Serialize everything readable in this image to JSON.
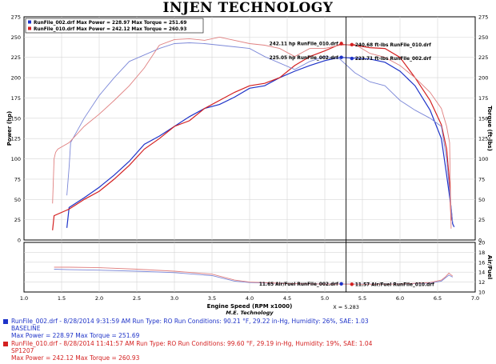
{
  "header": {
    "title": "INJEN TECHNOLOGY"
  },
  "legend_box": {
    "lines": [
      {
        "text": "RunFile_002.drf  Max Power = 228.97    Max Torque = 251.69",
        "color": "#1e33c8"
      },
      {
        "text": "RunFile_010.drf  Max Power = 242.12    Max Torque = 260.93",
        "color": "#d42020"
      }
    ]
  },
  "cursor": {
    "x": 5.283,
    "label": "X = 5.283"
  },
  "annotations": [
    {
      "text": "242.11 hp RunFile_010.drf",
      "x": 5.22,
      "y": 242.11,
      "axis": "power",
      "side": "left",
      "color": "#d42020"
    },
    {
      "text": "225.05 hp RunFile_002.drf",
      "x": 5.22,
      "y": 225.05,
      "axis": "power",
      "side": "left",
      "color": "#1e33c8"
    },
    {
      "text": "240.68 ft-lbs RunFile_010.drf",
      "x": 5.36,
      "y": 240.68,
      "axis": "power",
      "side": "right",
      "color": "#d42020"
    },
    {
      "text": "223.71 ft-lbs RunFile_002.drf",
      "x": 5.36,
      "y": 223.71,
      "axis": "power",
      "side": "right",
      "color": "#1e33c8"
    },
    {
      "text": "11.65 Air/Fuel RunFile_002.drf",
      "x": 5.22,
      "y": 11.65,
      "axis": "af",
      "side": "left",
      "color": "#1e33c8"
    },
    {
      "text": "11.57 Air/Fuel RunFile_010.drf",
      "x": 5.36,
      "y": 11.57,
      "axis": "af",
      "side": "right",
      "color": "#d42020"
    }
  ],
  "footer": {
    "run1": {
      "line1": "RunFile_002.drf - 8/28/2014 9:31:59 AM  Run Type: RO  Run Conditions: 90.21 °F, 29.22 in-Hg,  Humidity:  26%, SAE: 1.03",
      "line2": "BASELINE",
      "line3": "Max Power = 228.97  Max Torque = 251.69",
      "color": "#1e33c8"
    },
    "run2": {
      "line1": "RunFile_010.drf - 8/28/2014 11:41:57 AM  Run Type: RO  Run Conditions: 99.60 °F, 29.19 in-Hg,  Humidity:  19%, SAE: 1.04",
      "line2": "SP1207",
      "line3": "Max Power = 242.12  Max Torque = 260.93",
      "color": "#d42020"
    }
  },
  "chart_data": {
    "type": "line",
    "xlabel": "Engine Speed (RPM x1000)",
    "xlabel_sub": "M.E. Technology",
    "xlim": [
      1.0,
      7.0
    ],
    "xticks": [
      "1.0",
      "1.5",
      "2.0",
      "2.5",
      "3.0",
      "3.5",
      "4.0",
      "4.5",
      "5.0",
      "5.5",
      "6.0",
      "6.5",
      "7.0"
    ],
    "main": {
      "ylabel_left": "Power (hp)",
      "ylabel_right": "Torque (ft-lbs)",
      "ylim": [
        0,
        275
      ],
      "yticks": [
        "0",
        "25",
        "50",
        "75",
        "100",
        "125",
        "150",
        "175",
        "200",
        "225",
        "250",
        "275"
      ],
      "grid": true,
      "series": [
        {
          "name": "RunFile_002.drf Power",
          "color": "#1e33c8",
          "kind": "power",
          "x": [
            1.57,
            1.6,
            1.8,
            2.0,
            2.2,
            2.4,
            2.6,
            2.8,
            3.0,
            3.2,
            3.4,
            3.6,
            3.8,
            4.0,
            4.2,
            4.4,
            4.6,
            4.8,
            5.0,
            5.2,
            5.4,
            5.6,
            5.8,
            6.0,
            6.2,
            6.4,
            6.55,
            6.62,
            6.68,
            6.7,
            6.72
          ],
          "y": [
            15,
            40,
            52,
            65,
            80,
            97,
            118,
            128,
            140,
            152,
            162,
            167,
            176,
            187,
            190,
            200,
            208,
            215,
            221,
            225,
            224,
            223,
            219,
            208,
            190,
            160,
            125,
            80,
            40,
            20,
            16
          ]
        },
        {
          "name": "RunFile_010.drf Power",
          "color": "#d42020",
          "kind": "power",
          "x": [
            1.38,
            1.4,
            1.6,
            1.8,
            2.0,
            2.2,
            2.4,
            2.6,
            2.8,
            3.0,
            3.2,
            3.4,
            3.6,
            3.8,
            4.0,
            4.2,
            4.4,
            4.6,
            4.8,
            5.0,
            5.2,
            5.4,
            5.6,
            5.8,
            6.0,
            6.2,
            6.4,
            6.55,
            6.62,
            6.66,
            6.68
          ],
          "y": [
            12,
            30,
            38,
            50,
            60,
            75,
            92,
            112,
            125,
            140,
            147,
            162,
            172,
            182,
            190,
            193,
            200,
            215,
            226,
            233,
            241,
            240,
            237,
            236,
            225,
            200,
            172,
            142,
            112,
            70,
            24
          ]
        },
        {
          "name": "RunFile_002.drf Torque",
          "color": "#7c88d8",
          "kind": "torque",
          "x": [
            1.57,
            1.6,
            1.62,
            1.65,
            1.8,
            2.0,
            2.2,
            2.4,
            2.6,
            2.8,
            3.0,
            3.2,
            3.4,
            3.6,
            3.8,
            4.0,
            4.2,
            4.4,
            4.6,
            4.8,
            5.0,
            5.2,
            5.4,
            5.6,
            5.8,
            6.0,
            6.2,
            6.4,
            6.55,
            6.62,
            6.68,
            6.7
          ],
          "y": [
            55,
            90,
            120,
            125,
            150,
            178,
            200,
            220,
            228,
            236,
            242,
            243,
            242,
            240,
            238,
            236,
            226,
            218,
            210,
            220,
            226,
            223,
            206,
            195,
            190,
            172,
            160,
            150,
            140,
            100,
            40,
            22
          ]
        },
        {
          "name": "RunFile_010.drf Torque",
          "color": "#e08080",
          "kind": "torque",
          "x": [
            1.38,
            1.4,
            1.42,
            1.45,
            1.6,
            1.8,
            2.0,
            2.2,
            2.4,
            2.6,
            2.8,
            3.0,
            3.2,
            3.4,
            3.6,
            3.8,
            4.0,
            4.2,
            4.4,
            4.6,
            4.8,
            5.0,
            5.2,
            5.4,
            5.6,
            5.8,
            6.0,
            6.2,
            6.4,
            6.55,
            6.62,
            6.66,
            6.68
          ],
          "y": [
            45,
            100,
            108,
            112,
            120,
            140,
            155,
            172,
            190,
            212,
            240,
            247,
            248,
            246,
            250,
            246,
            242,
            240,
            236,
            226,
            236,
            236,
            240,
            241,
            230,
            225,
            215,
            200,
            182,
            162,
            140,
            120,
            14
          ]
        }
      ]
    },
    "af": {
      "ylabel_right": "Air/Fuel",
      "ylim": [
        10,
        20
      ],
      "yticks": [
        "10",
        "12",
        "14",
        "16",
        "18",
        "20"
      ],
      "series": [
        {
          "name": "RunFile_002.drf Air/Fuel",
          "color": "#7c88d8",
          "x": [
            1.4,
            1.6,
            2.0,
            2.5,
            3.0,
            3.5,
            3.8,
            4.0,
            4.5,
            5.0,
            5.5,
            6.0,
            6.4,
            6.55,
            6.6,
            6.65,
            6.7
          ],
          "y": [
            14.6,
            14.5,
            14.4,
            14.2,
            13.9,
            13.3,
            12.2,
            11.9,
            11.7,
            11.65,
            11.6,
            11.6,
            11.8,
            12.2,
            12.8,
            13.4,
            13.0
          ]
        },
        {
          "name": "RunFile_010.drf Air/Fuel",
          "color": "#e08080",
          "x": [
            1.4,
            1.6,
            2.0,
            2.5,
            3.0,
            3.5,
            3.8,
            4.0,
            4.5,
            5.0,
            5.5,
            6.0,
            6.4,
            6.55,
            6.6,
            6.65,
            6.7
          ],
          "y": [
            15.0,
            15.0,
            14.9,
            14.6,
            14.2,
            13.6,
            12.4,
            12.0,
            11.7,
            11.6,
            11.57,
            11.6,
            11.9,
            12.4,
            13.0,
            13.8,
            13.2
          ]
        }
      ]
    }
  }
}
